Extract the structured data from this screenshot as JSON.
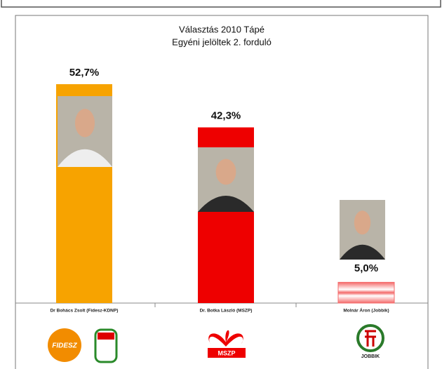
{
  "chart_data": {
    "type": "bar",
    "title": "Választás 2010 Tápé",
    "subtitle": "Egyéni jelöltek 2. forduló",
    "categories": [
      "Dr Bohács Zsolt (Fidesz-KDNP)",
      "Dr. Botka László (MSZP)",
      "Molnár Áron (Jobbik)"
    ],
    "values": [
      52.7,
      42.3,
      5.0
    ],
    "value_labels": [
      "52,7%",
      "42,3%",
      "5,0%"
    ],
    "colors": [
      "#f7a300",
      "#ee0000",
      "#f46a6a"
    ],
    "logos": [
      "FIDESZ",
      "MSZP",
      "JOBBIK"
    ]
  }
}
